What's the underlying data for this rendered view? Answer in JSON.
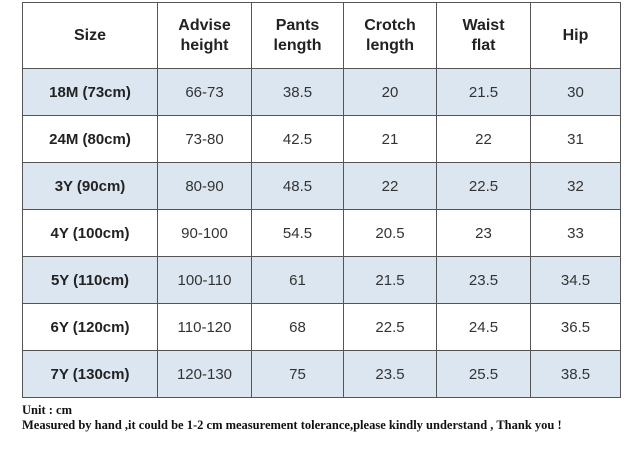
{
  "table": {
    "header": [
      "Size",
      "Advise height",
      "Pants length",
      "Crotch length",
      "Waist flat",
      "Hip"
    ],
    "rows": [
      [
        "18M (73cm)",
        "66-73",
        "38.5",
        "20",
        "21.5",
        "30"
      ],
      [
        "24M (80cm)",
        "73-80",
        "42.5",
        "21",
        "22",
        "31"
      ],
      [
        "3Y (90cm)",
        "80-90",
        "48.5",
        "22",
        "22.5",
        "32"
      ],
      [
        "4Y (100cm)",
        "90-100",
        "54.5",
        "20.5",
        "23",
        "33"
      ],
      [
        "5Y (110cm)",
        "100-110",
        "61",
        "21.5",
        "23.5",
        "34.5"
      ],
      [
        "6Y (120cm)",
        "110-120",
        "68",
        "22.5",
        "24.5",
        "36.5"
      ],
      [
        "7Y (130cm)",
        "120-130",
        "75",
        "23.5",
        "25.5",
        "38.5"
      ]
    ]
  },
  "notes": [
    "Unit : cm",
    "Measured by hand ,it could be 1-2 cm measurement tolerance,please kindly understand , Thank you !"
  ]
}
